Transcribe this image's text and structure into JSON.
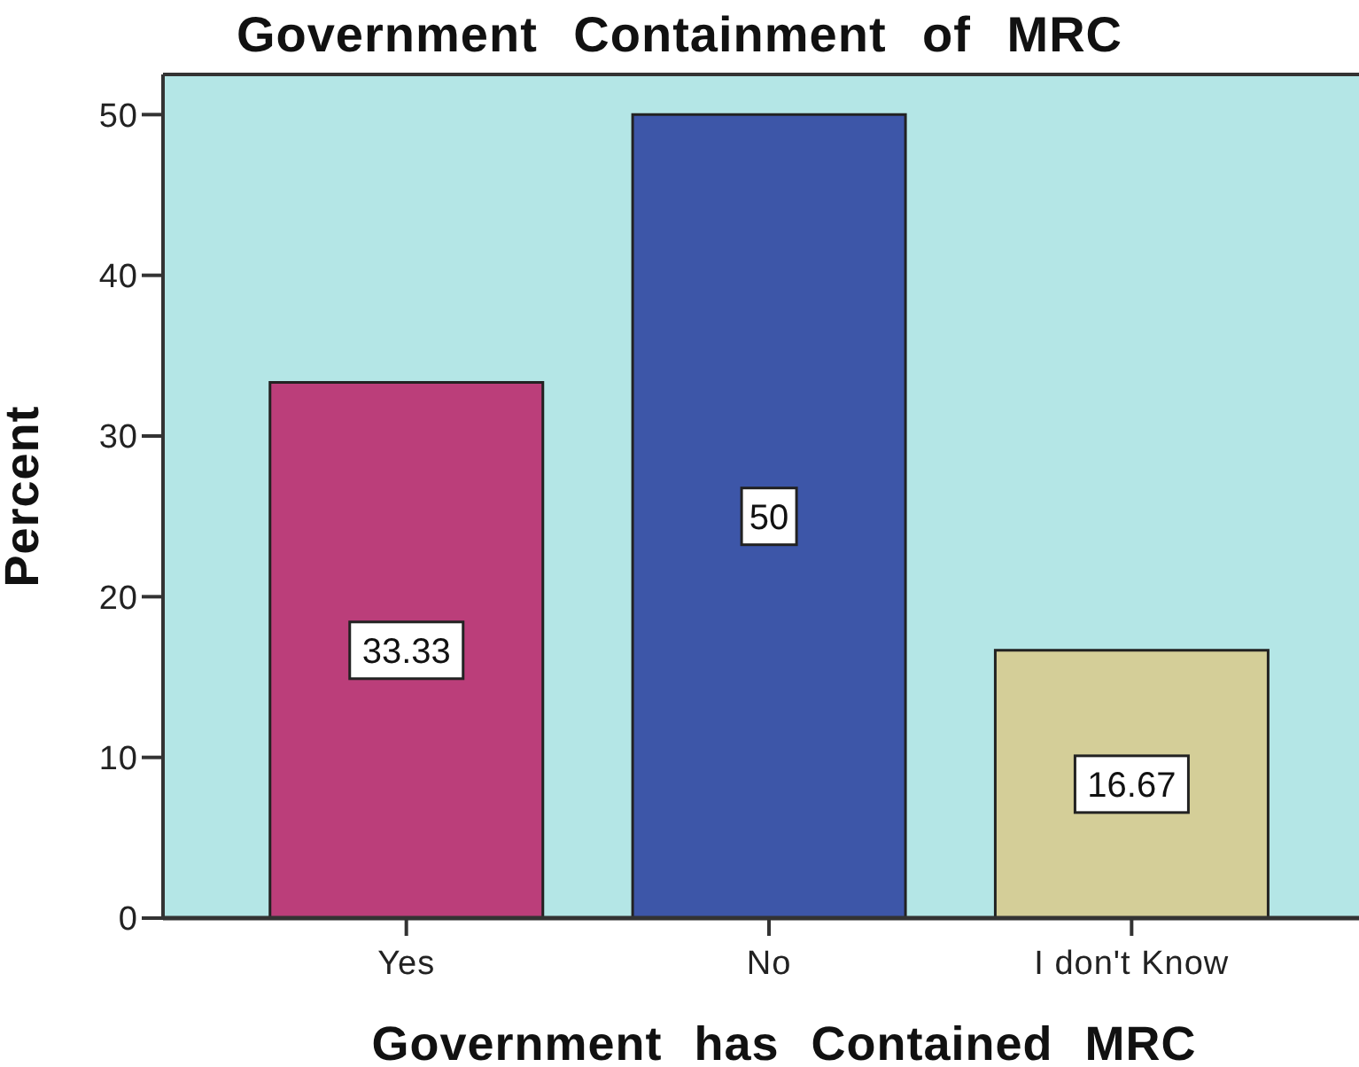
{
  "chart_data": {
    "type": "bar",
    "title": "Government Containment of MRC",
    "xlabel": "Government has Contained MRC",
    "ylabel": "Percent",
    "categories": [
      "Yes",
      "No",
      "I don't Know"
    ],
    "values": [
      33.33,
      50,
      16.67
    ],
    "colors": [
      "#bb3e7a",
      "#3d56a8",
      "#d4ce98"
    ],
    "ylim": [
      0,
      52.5
    ],
    "yticks": [
      0,
      10,
      20,
      30,
      40,
      50
    ],
    "data_labels": true
  }
}
